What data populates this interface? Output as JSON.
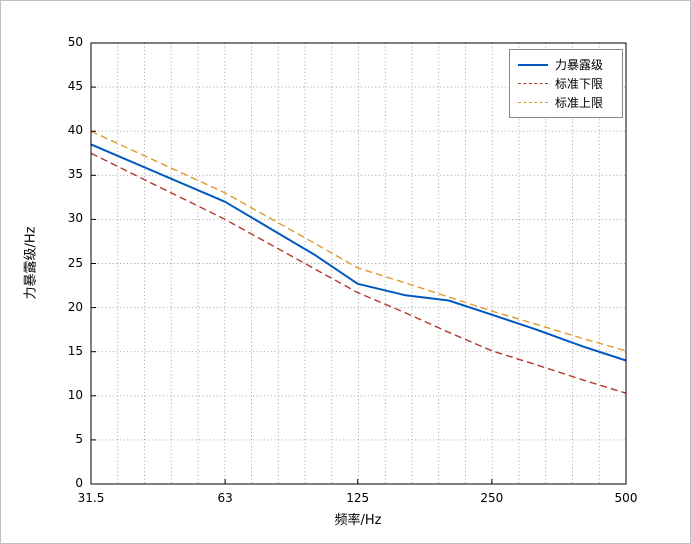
{
  "figure": {
    "background": "#ffffff",
    "frame_color": "#000000",
    "grid_color": "#9a9a9a"
  },
  "chart_data": {
    "type": "line",
    "title": "",
    "xlabel": "频率/Hz",
    "ylabel": "力暴露级/Hz",
    "x_scale": "log2",
    "xlim": [
      31.5,
      500
    ],
    "ylim": [
      0,
      50
    ],
    "y_tick_step": 5,
    "x_ticks": [
      31.5,
      63,
      125,
      250,
      500
    ],
    "x_tick_labels": [
      "31.5",
      "63",
      "125",
      "250",
      "500"
    ],
    "grid": true,
    "legend_position": "top-right",
    "x": [
      31.5,
      63,
      100,
      125,
      160,
      200,
      250,
      315,
      400,
      500
    ],
    "series": [
      {
        "name": "力暴露级",
        "color": "#0059c1",
        "style": "solid",
        "width": 2,
        "values": [
          38.5,
          32.0,
          26.0,
          22.7,
          21.4,
          20.8,
          19.2,
          17.5,
          15.6,
          14.0
        ]
      },
      {
        "name": "标准下限",
        "color": "#b03a2e",
        "style": "dashed",
        "width": 1.4,
        "values": [
          37.5,
          30.0,
          24.4,
          21.7,
          19.4,
          17.2,
          15.1,
          13.5,
          11.8,
          10.3
        ]
      },
      {
        "name": "标准上限",
        "color": "#e09a2b",
        "style": "dashed",
        "width": 1.4,
        "values": [
          40.0,
          33.0,
          27.3,
          24.5,
          22.8,
          21.2,
          19.6,
          18.1,
          16.5,
          15.1
        ]
      }
    ]
  }
}
